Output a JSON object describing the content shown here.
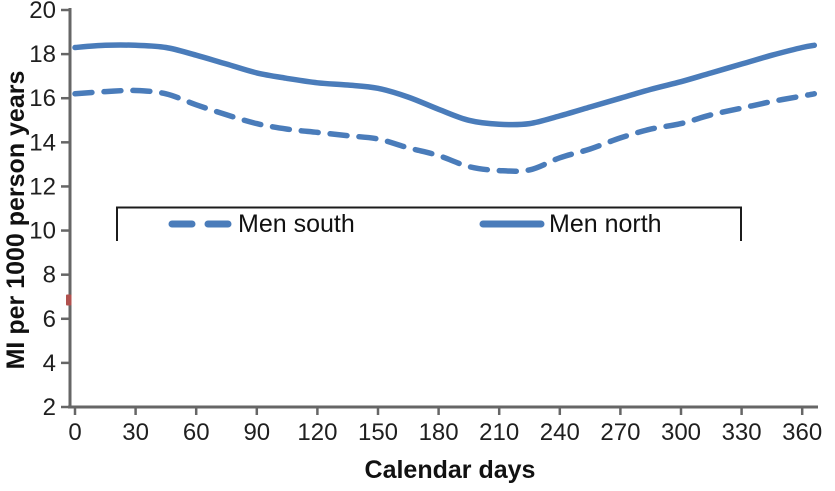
{
  "figure": {
    "background": "#ffffff"
  },
  "chart_data": {
    "type": "line",
    "title": "",
    "xlabel": "Calendar days",
    "ylabel": "MI per 1000 person years",
    "xlim": [
      0,
      368
    ],
    "ylim": [
      2,
      20
    ],
    "xticks": [
      0,
      30,
      60,
      90,
      120,
      150,
      180,
      210,
      240,
      270,
      300,
      330,
      360
    ],
    "yticks": [
      2,
      4,
      6,
      8,
      10,
      12,
      14,
      16,
      18,
      20
    ],
    "grid": false,
    "x": [
      0,
      15,
      30,
      45,
      60,
      75,
      90,
      105,
      120,
      135,
      150,
      165,
      180,
      195,
      210,
      225,
      240,
      255,
      270,
      285,
      300,
      315,
      330,
      345,
      360,
      366
    ],
    "series": [
      {
        "name": "Men south",
        "style": "dashed",
        "color": "#4a7cba",
        "values": [
          16.2,
          16.3,
          16.35,
          16.2,
          15.7,
          15.25,
          14.85,
          14.6,
          14.45,
          14.3,
          14.15,
          13.75,
          13.4,
          12.9,
          12.72,
          12.75,
          13.3,
          13.7,
          14.2,
          14.6,
          14.85,
          15.25,
          15.55,
          15.85,
          16.1,
          16.2
        ]
      },
      {
        "name": "Men north",
        "style": "solid",
        "color": "#4a7cba",
        "values": [
          18.3,
          18.4,
          18.4,
          18.3,
          17.95,
          17.55,
          17.15,
          16.9,
          16.7,
          16.6,
          16.45,
          16.05,
          15.5,
          15.0,
          14.82,
          14.85,
          15.2,
          15.6,
          16.0,
          16.4,
          16.75,
          17.15,
          17.55,
          17.95,
          18.3,
          18.4
        ]
      }
    ],
    "legend": {
      "position": "inside-top-center",
      "entries": [
        "Men south",
        "Men north"
      ]
    },
    "axis_color": "#666666",
    "text_color": "#1f1f1f",
    "stray_mark": {
      "axis": "y",
      "value": 6.85,
      "color": "#b1514e"
    }
  }
}
